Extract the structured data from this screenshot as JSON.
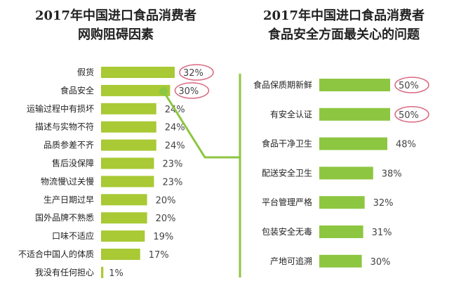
{
  "chart_data": [
    {
      "type": "bar",
      "orientation": "horizontal",
      "title": [
        "2017年中国进口食品消费者",
        "网购阻碍因素"
      ],
      "categories": [
        "假货",
        "食品安全",
        "运输过程中有损坏",
        "描述与实物不符",
        "品质参差不齐",
        "售后没保障",
        "物流慢\\过关慢",
        "生产日期过早",
        "国外品牌不熟悉",
        "口味不适应",
        "不适合中国人的体质",
        "我没有任何担心"
      ],
      "values": [
        32,
        30,
        24,
        24,
        24,
        23,
        23,
        20,
        20,
        19,
        17,
        1
      ],
      "labels": [
        "32%",
        "30%",
        "24%",
        "24%",
        "24%",
        "23%",
        "23%",
        "20%",
        "20%",
        "19%",
        "17%",
        "1%"
      ],
      "highlighted": [
        0,
        1
      ],
      "color": "#a9c935"
    },
    {
      "type": "bar",
      "orientation": "horizontal",
      "title": [
        "2017年中国进口食品消费者",
        "食品安全方面最关心的问题"
      ],
      "categories": [
        "食品保质期新鲜",
        "有安全认证",
        "食品干净卫生",
        "配送安全卫生",
        "平台管理严格",
        "包装安全无毒",
        "产地可追溯"
      ],
      "values": [
        50,
        50,
        48,
        38,
        32,
        31,
        30
      ],
      "labels": [
        "50%",
        "50%",
        "48%",
        "38%",
        "32%",
        "31%",
        "30%"
      ],
      "highlighted": [
        0,
        1
      ],
      "color": "#8dc641"
    }
  ],
  "colors": {
    "connector": "#8dc641",
    "highlight_circle": "#d9687f"
  }
}
